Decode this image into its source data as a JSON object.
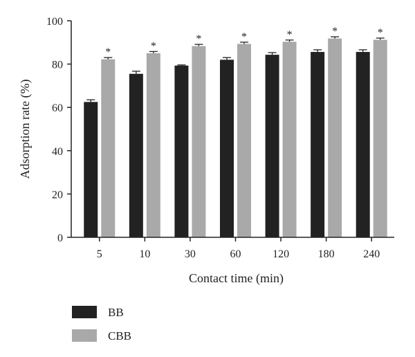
{
  "chart_data": {
    "type": "bar",
    "title": "",
    "xlabel": "Contact time (min)",
    "ylabel": "Adsorption rate (%)",
    "categories": [
      "5",
      "10",
      "30",
      "60",
      "120",
      "180",
      "240"
    ],
    "ylim": [
      0,
      100
    ],
    "yticks": [
      "0",
      "20",
      "40",
      "60",
      "80",
      "100"
    ],
    "series": [
      {
        "name": "BB",
        "color": "#222222",
        "values": [
          62.5,
          75.5,
          79.3,
          82.0,
          84.3,
          85.6,
          85.6
        ],
        "errors": [
          1.0,
          1.2,
          0.3,
          1.0,
          1.0,
          1.0,
          1.0
        ],
        "significance": [
          "",
          "",
          "",
          "",
          "",
          "",
          ""
        ]
      },
      {
        "name": "CBB",
        "color": "#a9a9a9",
        "values": [
          82.2,
          85.0,
          88.3,
          89.3,
          90.3,
          91.8,
          91.2
        ],
        "errors": [
          0.8,
          0.8,
          0.8,
          0.8,
          0.8,
          0.8,
          0.8
        ],
        "significance": [
          "*",
          "*",
          "*",
          "*",
          "*",
          "*",
          "*"
        ]
      }
    ],
    "legend_position": "bottom-left",
    "grid": false
  }
}
